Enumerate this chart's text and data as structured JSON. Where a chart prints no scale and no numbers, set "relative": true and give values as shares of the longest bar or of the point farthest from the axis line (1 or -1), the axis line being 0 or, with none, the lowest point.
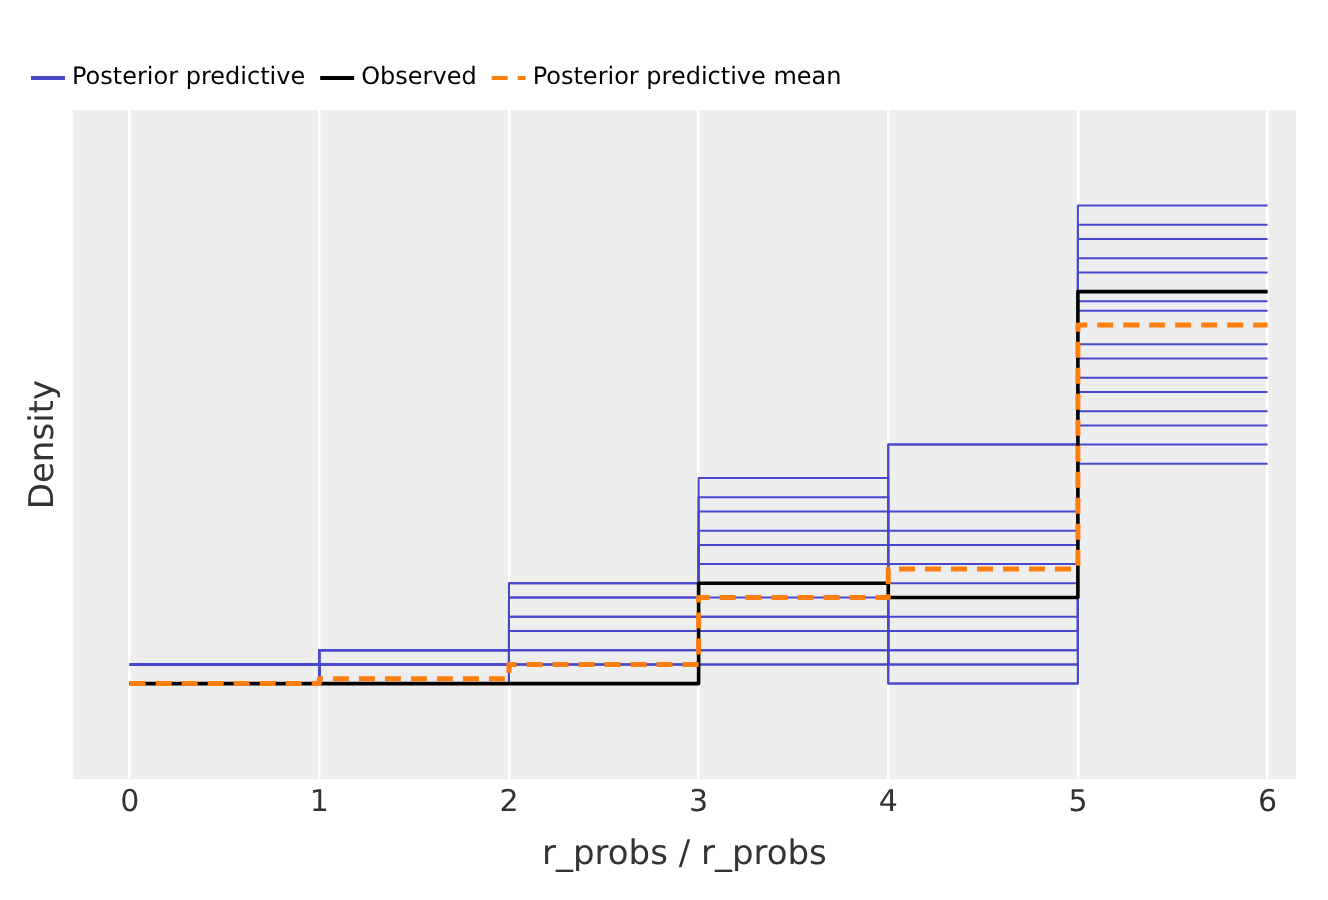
{
  "chart_data": {
    "type": "step",
    "relative": true,
    "xlabel": "r_probs / r_probs",
    "ylabel": "Density",
    "xlim": [
      -0.3,
      6.15
    ],
    "xticks": [
      0,
      1,
      2,
      3,
      4,
      5,
      6
    ],
    "grid": "x",
    "legend": "top left",
    "tick_labels": "x",
    "x": [
      0,
      1,
      2,
      3,
      4,
      5,
      6
    ],
    "series": [
      {
        "name": "Posterior predictive",
        "color": "#4848cc",
        "values": [
          0.04,
          0,
          0,
          0.04,
          0.5,
          0.46,
          0.46
        ]
      },
      {
        "color": "#4848cc",
        "values": [
          0,
          0.04,
          0.04,
          0.07,
          0,
          0.5,
          0.5
        ]
      },
      {
        "color": "#4848cc",
        "values": [
          0.04,
          0.07,
          0.07,
          0.11,
          0.04,
          0.54,
          0.54
        ]
      },
      {
        "color": "#4848cc",
        "values": [
          0,
          0,
          0.11,
          0.14,
          0.07,
          0.57,
          0.57
        ]
      },
      {
        "color": "#4848cc",
        "values": [
          0.04,
          0.04,
          0.14,
          0.18,
          0.11,
          0.61,
          0.61
        ]
      },
      {
        "color": "#4848cc",
        "values": [
          0,
          0.07,
          0.18,
          0.21,
          0.14,
          0.64,
          0.64
        ]
      },
      {
        "color": "#4848cc",
        "values": [
          0.04,
          0,
          0.21,
          0.25,
          0.18,
          0.68,
          0.68
        ]
      },
      {
        "color": "#4848cc",
        "values": [
          0,
          0.04,
          0,
          0.29,
          0.21,
          0.71,
          0.71
        ]
      },
      {
        "color": "#4848cc",
        "values": [
          0.04,
          0.07,
          0.04,
          0.32,
          0.25,
          0.78,
          0.78
        ]
      },
      {
        "color": "#4848cc",
        "values": [
          0,
          0,
          0.07,
          0.36,
          0.29,
          0.8,
          0.8
        ]
      },
      {
        "color": "#4848cc",
        "values": [
          0.04,
          0.04,
          0.11,
          0.39,
          0.32,
          0.82,
          0.82
        ]
      },
      {
        "color": "#4848cc",
        "values": [
          0,
          0.07,
          0.14,
          0.43,
          0.36,
          0.86,
          0.86
        ]
      },
      {
        "color": "#4848cc",
        "values": [
          0.04,
          0,
          0.18,
          0.04,
          0.5,
          0.89,
          0.89
        ]
      },
      {
        "color": "#4848cc",
        "values": [
          0,
          0.04,
          0.21,
          0.07,
          0,
          0.93,
          0.93
        ]
      },
      {
        "color": "#4848cc",
        "values": [
          0.04,
          0.07,
          0,
          0.11,
          0.04,
          0.96,
          0.96
        ]
      },
      {
        "color": "#4848cc",
        "values": [
          0,
          0,
          0.04,
          0.14,
          0.07,
          1,
          1
        ]
      },
      {
        "name": "Observed",
        "color": "#000000",
        "values": [
          0,
          0,
          0,
          0.21,
          0.18,
          0.82,
          0.82
        ]
      },
      {
        "name": "Posterior predictive mean",
        "color": "#ff7f0e",
        "line_style": "dashed",
        "values": [
          0,
          0.01,
          0.04,
          0.18,
          0.24,
          0.75,
          0.75
        ]
      }
    ]
  }
}
